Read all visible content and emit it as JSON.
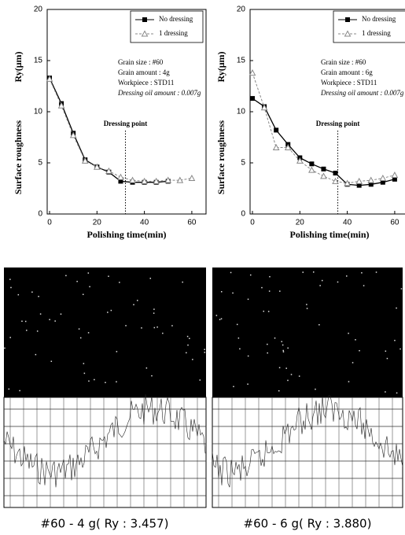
{
  "chart_data": [
    {
      "type": "line",
      "xlabel": "Polishing time(min)",
      "ylabel": "Surface roughness",
      "yunit": "Ry(μm)",
      "xlim": [
        -1,
        66
      ],
      "xticks": [
        0,
        20,
        40,
        60
      ],
      "ylim": [
        0,
        20
      ],
      "yticks": [
        0,
        5,
        10,
        15,
        20
      ],
      "legend": "upper right",
      "annotations": [
        "Grain size : #60",
        "Grain amount : 4g",
        "Workpiece : STD11",
        "Dressing oil amount : 0.007g"
      ],
      "dressing": {
        "text": "Dressing point",
        "x": 32
      },
      "series": [
        {
          "name": "No dressing",
          "color": "#000000",
          "x": [
            0,
            5,
            10,
            15,
            20,
            25,
            30,
            35,
            40,
            45,
            50
          ],
          "values": [
            13.3,
            10.8,
            7.9,
            5.3,
            4.6,
            4.1,
            3.2,
            3.1,
            3.1,
            3.1,
            3.2
          ]
        },
        {
          "name": "1 dressing",
          "color": "#888888",
          "x": [
            0,
            5,
            10,
            15,
            20,
            25,
            30,
            35,
            40,
            45,
            50,
            55,
            60
          ],
          "values": [
            13.2,
            10.6,
            7.7,
            5.2,
            4.6,
            4.2,
            3.6,
            3.3,
            3.2,
            3.2,
            3.3,
            3.3,
            3.5
          ]
        }
      ]
    },
    {
      "type": "line",
      "xlabel": "Polishing time(min)",
      "ylabel": "Surface roughness",
      "yunit": "Ry(μm)",
      "xlim": [
        -1,
        66
      ],
      "xticks": [
        0,
        20,
        40,
        60
      ],
      "ylim": [
        0,
        20
      ],
      "yticks": [
        0,
        5,
        10,
        15,
        20
      ],
      "legend": "upper right",
      "annotations": [
        "Grain size : #60",
        "Grain amount : 6g",
        "Workpiece : STD11",
        "Dressing oil amount : 0.007g"
      ],
      "dressing": {
        "text": "Dressing point",
        "x": 36
      },
      "series": [
        {
          "name": "No dressing",
          "color": "#000000",
          "x": [
            0,
            5,
            10,
            15,
            20,
            25,
            30,
            35,
            40,
            45,
            50,
            55,
            60
          ],
          "values": [
            11.3,
            10.5,
            8.2,
            6.8,
            5.5,
            4.9,
            4.4,
            4.0,
            2.9,
            2.8,
            2.9,
            3.1,
            3.4
          ]
        },
        {
          "name": "1 dressing",
          "color": "#888888",
          "x": [
            0,
            5,
            10,
            15,
            20,
            25,
            30,
            35,
            40,
            45,
            50,
            55,
            60
          ],
          "values": [
            13.8,
            10.4,
            6.5,
            6.5,
            5.2,
            4.3,
            3.7,
            3.2,
            3.0,
            3.2,
            3.3,
            3.5,
            3.8
          ]
        }
      ]
    }
  ],
  "images": [
    {
      "caption": "#60  - 4 g( Ry  : 3.457)"
    },
    {
      "caption": "#60  - 6 g( Ry  : 3.880)"
    }
  ]
}
